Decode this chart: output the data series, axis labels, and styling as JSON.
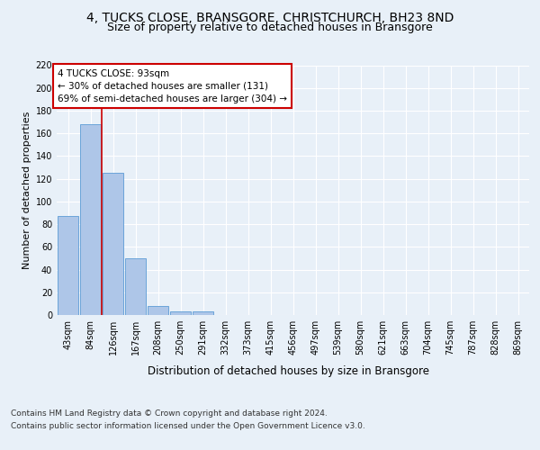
{
  "title1": "4, TUCKS CLOSE, BRANSGORE, CHRISTCHURCH, BH23 8ND",
  "title2": "Size of property relative to detached houses in Bransgore",
  "xlabel": "Distribution of detached houses by size in Bransgore",
  "ylabel": "Number of detached properties",
  "categories": [
    "43sqm",
    "84sqm",
    "126sqm",
    "167sqm",
    "208sqm",
    "250sqm",
    "291sqm",
    "332sqm",
    "373sqm",
    "415sqm",
    "456sqm",
    "497sqm",
    "539sqm",
    "580sqm",
    "621sqm",
    "663sqm",
    "704sqm",
    "745sqm",
    "787sqm",
    "828sqm",
    "869sqm"
  ],
  "values": [
    87,
    168,
    125,
    50,
    8,
    3,
    3,
    0,
    0,
    0,
    0,
    0,
    0,
    0,
    0,
    0,
    0,
    0,
    0,
    0,
    0
  ],
  "bar_color": "#aec6e8",
  "bar_edge_color": "#5b9bd5",
  "annotation_box_text": "4 TUCKS CLOSE: 93sqm\n← 30% of detached houses are smaller (131)\n69% of semi-detached houses are larger (304) →",
  "annotation_box_color": "#ffffff",
  "annotation_box_edge_color": "#cc0000",
  "red_line_x": 1.48,
  "ylim": [
    0,
    220
  ],
  "yticks": [
    0,
    20,
    40,
    60,
    80,
    100,
    120,
    140,
    160,
    180,
    200,
    220
  ],
  "footer_line1": "Contains HM Land Registry data © Crown copyright and database right 2024.",
  "footer_line2": "Contains public sector information licensed under the Open Government Licence v3.0.",
  "background_color": "#e8f0f8",
  "plot_bg_color": "#e8f0f8",
  "grid_color": "#ffffff",
  "title1_fontsize": 10,
  "title2_fontsize": 9,
  "tick_fontsize": 7,
  "ylabel_fontsize": 8,
  "xlabel_fontsize": 8.5,
  "footer_fontsize": 6.5,
  "annotation_fontsize": 7.5
}
